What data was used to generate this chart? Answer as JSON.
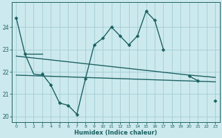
{
  "x": [
    0,
    1,
    2,
    3,
    4,
    5,
    6,
    7,
    8,
    9,
    10,
    11,
    12,
    13,
    14,
    15,
    16,
    17,
    18,
    19,
    20,
    21,
    22,
    23
  ],
  "line_main": [
    24.4,
    22.8,
    null,
    21.9,
    21.4,
    20.6,
    20.5,
    20.1,
    21.7,
    23.2,
    23.5,
    24.0,
    23.6,
    23.2,
    23.6,
    24.7,
    24.3,
    23.0,
    null,
    null,
    21.8,
    21.6,
    null,
    20.7
  ],
  "line_flat": [
    [
      1,
      22.8
    ],
    [
      2,
      22.8
    ],
    [
      3,
      22.8
    ]
  ],
  "line_short": [
    [
      1,
      22.8
    ],
    [
      2,
      21.9
    ],
    [
      3,
      21.85
    ]
  ],
  "line_reg1": [
    [
      0,
      21.85
    ],
    [
      23,
      21.55
    ]
  ],
  "line_reg2": [
    [
      0,
      22.7
    ],
    [
      20,
      21.85
    ],
    [
      23,
      21.75
    ]
  ],
  "background_color": "#cce9ed",
  "grid_color": "#a0cdd4",
  "line_color": "#1a6060",
  "xlabel": "Humidex (Indice chaleur)",
  "ylim": [
    19.75,
    25.1
  ],
  "xlim": [
    -0.5,
    23.5
  ],
  "yticks": [
    20,
    21,
    22,
    23,
    24
  ],
  "xticks": [
    0,
    1,
    2,
    3,
    4,
    5,
    6,
    7,
    8,
    9,
    10,
    11,
    12,
    13,
    14,
    15,
    16,
    17,
    18,
    19,
    20,
    21,
    22,
    23
  ],
  "markersize": 2.5,
  "linewidth": 1.0
}
